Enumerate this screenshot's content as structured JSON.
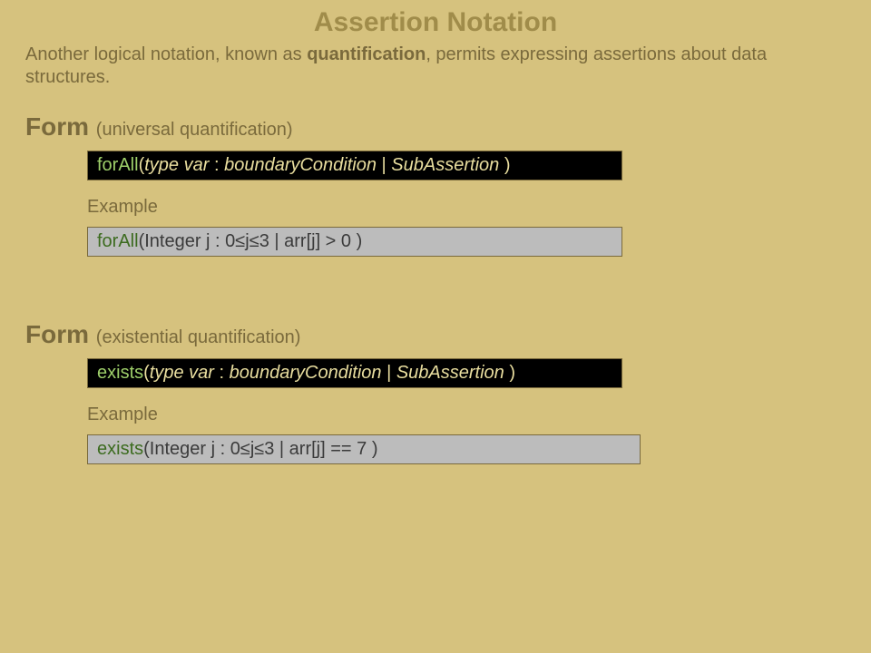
{
  "title": "Assertion Notation",
  "intro_pre": "Another logical notation, known as ",
  "intro_kw": "quantification",
  "intro_post": ", permits expressing assertions about data structures.",
  "universal": {
    "heading_big": "Form",
    "heading_paren": "(universal quantification)",
    "box": {
      "fn": "forAll",
      "open": "(",
      "arg1": "type  var",
      "colon": " : ",
      "arg2": "boundaryCondition",
      "pipe": "   |  ",
      "arg3": "SubAssertion",
      "close": " )"
    },
    "example_label": "Example",
    "example": {
      "fn": "forAll",
      "rest": "(Integer j : 0≤j≤3  |  arr[j] > 0 )"
    }
  },
  "existential": {
    "heading_big": "Form",
    "heading_paren": "(existential quantification)",
    "box": {
      "fn": "exists",
      "open": "(",
      "arg1": "type  var",
      "colon": " : ",
      "arg2": "boundaryCondition",
      "pipe": "   |   ",
      "arg3": "SubAssertion",
      "close": " )"
    },
    "example_label": "Example",
    "example": {
      "fn": "exists",
      "rest": "(Integer j : 0≤j≤3  |  arr[j] == 7 )"
    }
  },
  "colors": {
    "background": "#d6c27e",
    "title": "#a08c4a",
    "body_text": "#7a6a3c",
    "blackbox_bg": "#000000",
    "blackbox_text": "#e9de9f",
    "blackbox_fn": "#9ecf6a",
    "graybox_bg": "#bcbcbc",
    "graybox_text": "#3b3b3b",
    "graybox_fn": "#3c6b1f"
  }
}
